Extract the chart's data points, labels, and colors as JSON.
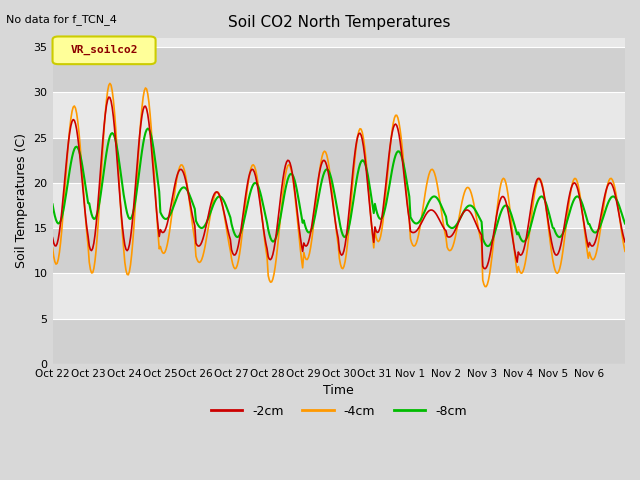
{
  "title": "Soil CO2 North Temperatures",
  "no_data_text": "No data for f_TCN_4",
  "xlabel": "Time",
  "ylabel": "Soil Temperatures (C)",
  "ylim": [
    0,
    36
  ],
  "yticks": [
    0,
    5,
    10,
    15,
    20,
    25,
    30,
    35
  ],
  "fig_bg_color": "#d8d8d8",
  "plot_bg_color": "#e8e8e8",
  "band_dark": "#d0d0d0",
  "band_light": "#e8e8e8",
  "legend_box_facecolor": "#ffff99",
  "legend_box_edgecolor": "#cccc00",
  "legend_label": "VR_soilco2",
  "color_2cm": "#cc0000",
  "color_4cm": "#ff9900",
  "color_8cm": "#00bb00",
  "grid_color": "#ffffff",
  "tick_labels": [
    "Oct 22",
    "Oct 23",
    "Oct 24",
    "Oct 25",
    "Oct 26",
    "Oct 27",
    "Oct 28",
    "Oct 29",
    "Oct 30",
    "Oct 31",
    "Nov 1",
    "Nov 2",
    "Nov 3",
    "Nov 4",
    "Nov 5",
    "Nov 6"
  ],
  "num_days": 16
}
